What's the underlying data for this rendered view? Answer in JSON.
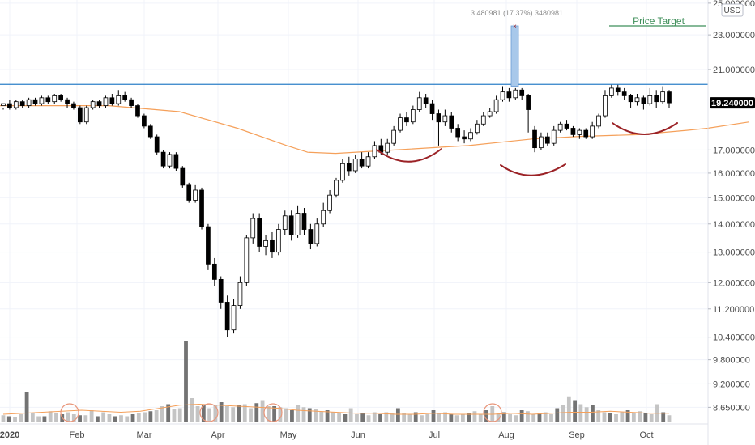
{
  "chart_data": {
    "type": "candlestick",
    "currency": "USD",
    "price_axis": {
      "ticks": [
        "25.000000",
        "23.000000",
        "21.000000",
        "17.000000",
        "16.000000",
        "15.000000",
        "14.000000",
        "13.000000",
        "12.000000",
        "11.200000",
        "10.400000",
        "9.800000",
        "9.200000",
        "8.650000"
      ],
      "tick_values": [
        25.0,
        23.0,
        21.0,
        17.0,
        16.0,
        15.0,
        14.0,
        13.0,
        12.0,
        11.2,
        10.4,
        9.8,
        9.2,
        8.65
      ],
      "scale": "log",
      "range": [
        8.35,
        25.1
      ]
    },
    "time_axis": {
      "labels": [
        "2020",
        "Feb",
        "Mar",
        "Apr",
        "May",
        "Jun",
        "Jul",
        "Aug",
        "Sep",
        "Oct"
      ],
      "months": [
        1,
        2,
        3,
        4,
        5,
        6,
        7,
        8,
        9,
        10
      ]
    },
    "last_price": {
      "label": "19.240000",
      "value": 19.24
    },
    "resistance_level": 20.2,
    "price_target": {
      "label": "Price Target",
      "value": 23.55
    },
    "measure_annotation": {
      "label": "3.480981 (17.37%) 3480981",
      "from": 20.1,
      "to": 23.55
    },
    "moving_average": [
      {
        "x": 0.0,
        "v": 19.1
      },
      {
        "x": 1.5,
        "v": 19.1
      },
      {
        "x": 2.5,
        "v": 18.8
      },
      {
        "x": 3.3,
        "v": 18.0
      },
      {
        "x": 4.0,
        "v": 17.2
      },
      {
        "x": 4.3,
        "v": 16.9
      },
      {
        "x": 4.7,
        "v": 16.85
      },
      {
        "x": 5.5,
        "v": 17.0
      },
      {
        "x": 6.5,
        "v": 17.2
      },
      {
        "x": 7.4,
        "v": 17.5
      },
      {
        "x": 8.1,
        "v": 17.62
      },
      {
        "x": 8.9,
        "v": 17.7
      },
      {
        "x": 9.6,
        "v": 17.9
      },
      {
        "x": 9.9,
        "v": 18.0
      },
      {
        "x": 10.5,
        "v": 18.3
      }
    ],
    "candles": [
      [
        19.1,
        19.2,
        19.0,
        18.9
      ],
      [
        19.2,
        19.0,
        19.4,
        18.9
      ],
      [
        19.0,
        19.3,
        19.4,
        18.9
      ],
      [
        19.3,
        19.1,
        19.4,
        19.0
      ],
      [
        19.1,
        19.4,
        19.5,
        19.0
      ],
      [
        19.4,
        19.2,
        19.5,
        19.1
      ],
      [
        19.2,
        19.5,
        19.6,
        19.1
      ],
      [
        19.5,
        19.3,
        19.6,
        19.2
      ],
      [
        19.3,
        19.6,
        19.7,
        19.2
      ],
      [
        19.6,
        19.4,
        19.7,
        19.3
      ],
      [
        19.4,
        19.2,
        19.5,
        19.0
      ],
      [
        19.2,
        19.0,
        19.3,
        18.9
      ],
      [
        19.0,
        18.3,
        19.1,
        18.2
      ],
      [
        18.3,
        19.0,
        19.1,
        18.2
      ],
      [
        19.0,
        19.3,
        19.4,
        18.9
      ],
      [
        19.3,
        19.1,
        19.4,
        19.0
      ],
      [
        19.1,
        19.5,
        19.6,
        19.0
      ],
      [
        19.5,
        19.2,
        19.7,
        19.1
      ],
      [
        19.2,
        19.6,
        19.9,
        19.1
      ],
      [
        19.6,
        19.4,
        19.8,
        19.3
      ],
      [
        19.4,
        19.1,
        19.5,
        19.0
      ],
      [
        19.1,
        18.6,
        19.2,
        18.5
      ],
      [
        18.6,
        18.1,
        18.7,
        18.0
      ],
      [
        18.1,
        17.6,
        18.2,
        17.5
      ],
      [
        17.6,
        16.9,
        17.7,
        16.8
      ],
      [
        16.9,
        16.3,
        17.0,
        16.2
      ],
      [
        16.3,
        16.8,
        16.9,
        16.2
      ],
      [
        16.8,
        16.2,
        16.9,
        16.1
      ],
      [
        16.2,
        15.5,
        16.3,
        15.4
      ],
      [
        15.5,
        14.9,
        15.6,
        14.8
      ],
      [
        14.9,
        15.3,
        15.5,
        14.8
      ],
      [
        15.3,
        13.9,
        15.4,
        13.8
      ],
      [
        13.9,
        12.6,
        14.0,
        12.4
      ],
      [
        12.6,
        12.1,
        12.8,
        11.9
      ],
      [
        12.1,
        11.4,
        12.2,
        11.2
      ],
      [
        11.4,
        10.6,
        11.6,
        10.4
      ],
      [
        10.6,
        11.3,
        11.5,
        10.5
      ],
      [
        11.3,
        12.0,
        12.2,
        11.2
      ],
      [
        12.0,
        13.5,
        13.6,
        11.9
      ],
      [
        13.5,
        14.2,
        14.4,
        13.3
      ],
      [
        14.2,
        13.2,
        14.4,
        13.0
      ],
      [
        13.2,
        13.4,
        13.6,
        12.9
      ],
      [
        13.4,
        13.0,
        13.7,
        12.8
      ],
      [
        13.0,
        13.8,
        14.0,
        12.9
      ],
      [
        13.8,
        14.3,
        14.5,
        13.6
      ],
      [
        14.3,
        13.6,
        14.5,
        13.4
      ],
      [
        13.6,
        14.4,
        14.7,
        13.5
      ],
      [
        14.4,
        13.8,
        14.6,
        13.6
      ],
      [
        13.8,
        13.3,
        14.0,
        13.1
      ],
      [
        13.3,
        14.0,
        14.2,
        13.2
      ],
      [
        14.0,
        14.5,
        14.8,
        13.9
      ],
      [
        14.5,
        15.1,
        15.3,
        14.4
      ],
      [
        15.1,
        15.7,
        15.8,
        15.0
      ],
      [
        15.7,
        16.4,
        16.6,
        15.6
      ],
      [
        16.4,
        16.1,
        16.7,
        15.9
      ],
      [
        16.1,
        16.6,
        16.8,
        16.0
      ],
      [
        16.6,
        16.3,
        16.9,
        16.2
      ],
      [
        16.3,
        16.7,
        16.9,
        16.2
      ],
      [
        16.7,
        17.2,
        17.4,
        16.6
      ],
      [
        17.2,
        16.9,
        17.5,
        16.8
      ],
      [
        16.9,
        17.3,
        17.5,
        16.8
      ],
      [
        17.3,
        17.9,
        18.1,
        17.2
      ],
      [
        17.9,
        18.5,
        18.7,
        17.8
      ],
      [
        18.5,
        18.3,
        18.8,
        18.1
      ],
      [
        18.3,
        18.9,
        19.1,
        18.2
      ],
      [
        18.9,
        19.5,
        19.8,
        18.8
      ],
      [
        19.5,
        19.2,
        19.7,
        19.0
      ],
      [
        19.2,
        18.7,
        19.4,
        18.4
      ],
      [
        18.7,
        18.3,
        18.9,
        17.2
      ],
      [
        18.3,
        18.6,
        18.9,
        18.1
      ],
      [
        18.6,
        18.0,
        18.8,
        17.8
      ],
      [
        18.0,
        17.6,
        18.2,
        17.4
      ],
      [
        17.6,
        17.5,
        17.9,
        17.3
      ],
      [
        17.5,
        17.8,
        18.0,
        17.4
      ],
      [
        17.8,
        18.2,
        18.4,
        17.7
      ],
      [
        18.2,
        18.6,
        18.8,
        18.1
      ],
      [
        18.6,
        18.8,
        19.0,
        18.5
      ],
      [
        18.8,
        19.4,
        19.6,
        18.7
      ],
      [
        19.4,
        19.8,
        20.1,
        19.3
      ],
      [
        19.8,
        19.5,
        20.0,
        19.3
      ],
      [
        19.5,
        19.9,
        20.0,
        19.4
      ],
      [
        19.9,
        19.6,
        20.0,
        19.4
      ],
      [
        19.6,
        18.9,
        19.7,
        17.8
      ],
      [
        17.9,
        17.1,
        18.1,
        16.9
      ],
      [
        17.1,
        17.6,
        17.8,
        17.0
      ],
      [
        17.6,
        17.3,
        17.8,
        17.2
      ],
      [
        17.3,
        17.9,
        18.1,
        17.2
      ],
      [
        17.9,
        18.2,
        18.3,
        17.8
      ],
      [
        18.2,
        18.0,
        18.4,
        17.9
      ],
      [
        18.0,
        17.7,
        18.1,
        17.6
      ],
      [
        17.7,
        17.9,
        18.0,
        17.5
      ],
      [
        17.9,
        17.6,
        18.0,
        17.5
      ],
      [
        17.6,
        18.1,
        18.3,
        17.5
      ],
      [
        18.1,
        18.6,
        18.7,
        18.0
      ],
      [
        18.6,
        19.6,
        19.9,
        18.5
      ],
      [
        19.6,
        20.0,
        20.2,
        19.5
      ],
      [
        20.0,
        19.8,
        20.2,
        19.6
      ],
      [
        19.8,
        19.6,
        20.0,
        19.4
      ],
      [
        19.6,
        19.3,
        19.7,
        19.0
      ],
      [
        19.3,
        19.5,
        19.7,
        19.1
      ],
      [
        19.5,
        19.2,
        19.6,
        18.9
      ],
      [
        19.2,
        19.6,
        20.0,
        19.1
      ],
      [
        19.6,
        19.3,
        19.9,
        19.0
      ],
      [
        19.3,
        19.8,
        20.1,
        19.2
      ],
      [
        19.8,
        19.24,
        19.9,
        19.0
      ]
    ],
    "volume": {
      "bars": [
        0.35,
        0.3,
        0.25,
        0.4,
        1.5,
        0.45,
        0.3,
        0.3,
        0.55,
        0.45,
        0.4,
        0.5,
        0.4,
        0.35,
        0.35,
        0.6,
        0.3,
        0.5,
        0.4,
        0.3,
        0.35,
        0.3,
        0.4,
        0.45,
        0.5,
        0.55,
        0.6,
        0.8,
        0.9,
        0.65,
        0.7,
        4.0,
        1.2,
        0.8,
        0.9,
        0.7,
        0.85,
        1.0,
        0.8,
        0.75,
        0.85,
        0.9,
        0.7,
        0.95,
        1.1,
        0.8,
        0.8,
        0.75,
        0.7,
        0.6,
        0.85,
        0.75,
        0.7,
        0.65,
        0.55,
        0.6,
        0.5,
        0.45,
        0.4,
        0.7,
        0.4,
        0.45,
        0.35,
        0.5,
        0.4,
        0.5,
        0.45,
        0.7,
        0.45,
        0.4,
        0.5,
        0.35,
        0.4,
        0.6,
        0.45,
        0.5,
        0.4,
        0.35,
        0.4,
        0.45,
        0.55,
        0.4,
        0.6,
        0.8,
        0.45,
        0.5,
        0.4,
        0.35,
        0.6,
        0.55,
        0.4,
        0.45,
        0.5,
        0.4,
        0.7,
        0.85,
        1.25,
        1.1,
        0.9,
        0.75,
        0.85,
        0.6,
        0.5,
        0.45,
        0.4,
        0.5,
        0.6,
        0.5,
        0.55,
        0.45,
        0.4,
        0.9,
        0.5,
        0.35
      ],
      "average": [
        0.4,
        0.45,
        0.5,
        0.55,
        0.6,
        0.55,
        0.5,
        0.55,
        0.7,
        0.85,
        0.9,
        0.85,
        0.8,
        0.75,
        0.7,
        0.6,
        0.55,
        0.5,
        0.45,
        0.45,
        0.4,
        0.4,
        0.45,
        0.4,
        0.4,
        0.4,
        0.45,
        0.4,
        0.45,
        0.5,
        0.5,
        0.55,
        0.5,
        0.45,
        0.45
      ]
    },
    "volume_markers": 4,
    "cup_arcs": 4
  },
  "colors": {
    "bull_fill": "#ffffff",
    "candle_outline": "#000000",
    "bear_fill": "#000000",
    "resistance_line": "#2e80c8",
    "moving_average": "#f5a05a",
    "price_target": "#3f8f5a",
    "cup_arc": "#9b2226",
    "marker_circle": "#e9967a",
    "measure_bar": "#a8c8ea",
    "last_price_bg": "#000000",
    "volume_light": "#c4c4c4",
    "volume_dark": "#737373"
  }
}
